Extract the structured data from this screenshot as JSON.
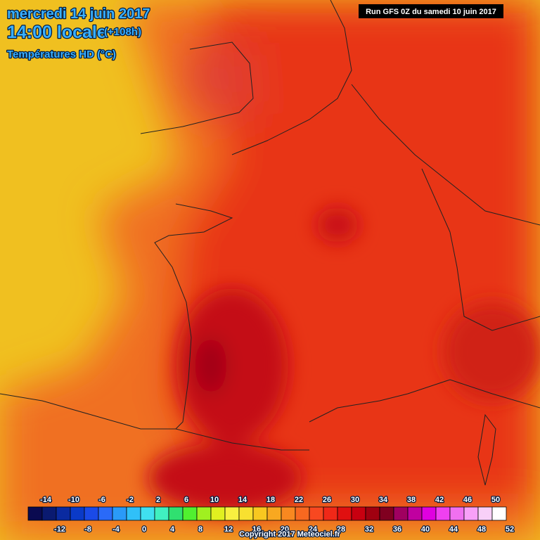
{
  "header": {
    "date": "mercredi 14 juin 2017",
    "time": "14:00 locale",
    "lead": "(+108h)",
    "field": "Températures HD (°C)",
    "run": "Run GFS 0Z du samedi 10 juin 2017"
  },
  "legend": {
    "values": [
      -14,
      -12,
      -10,
      -8,
      -6,
      -4,
      -2,
      0,
      2,
      4,
      6,
      8,
      10,
      12,
      14,
      16,
      18,
      20,
      22,
      24,
      26,
      28,
      30,
      32,
      34,
      36,
      38,
      40,
      42,
      44,
      46,
      48,
      50,
      52
    ],
    "colors": [
      "#0a0a50",
      "#0a1a70",
      "#0a2aa0",
      "#0a3ac8",
      "#1a4ae8",
      "#2a6af8",
      "#2a9af8",
      "#30c0f8",
      "#40e0f0",
      "#40f0c0",
      "#30e070",
      "#50f030",
      "#a0f020",
      "#e0f020",
      "#f8f040",
      "#f8e030",
      "#f8c820",
      "#f8a820",
      "#f88820",
      "#f86820",
      "#f84820",
      "#f02818",
      "#e01010",
      "#c80010",
      "#a00010",
      "#800020",
      "#a00060",
      "#c000a0",
      "#e000e0",
      "#f040f0",
      "#f070f0",
      "#f8a0f8",
      "#f8d0f8",
      "#ffffff"
    ]
  },
  "footer": {
    "copyright": "Copyright 2017 Meteociel.fr"
  }
}
